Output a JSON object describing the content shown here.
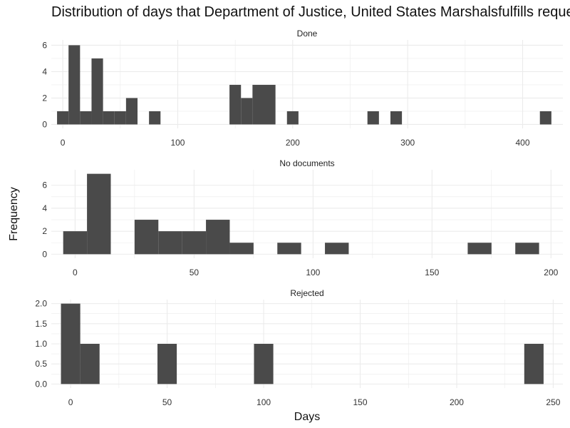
{
  "chart_data": {
    "type": "bar",
    "title": "Distribution of days that Department of Justice, United States Marshalsfulfills reque",
    "xlabel": "Days",
    "ylabel": "Frequency",
    "bar_color": "#4a4a4a",
    "grid_color": "#ebebeb",
    "grid": true,
    "panels": [
      {
        "name": "Done",
        "xlim": [
          -10,
          435
        ],
        "ylim": [
          -0.3,
          6.4
        ],
        "xticks": [
          0,
          100,
          200,
          300,
          400
        ],
        "yticks": [
          0,
          2,
          4,
          6
        ],
        "bin_width": 10,
        "bins": [
          {
            "x": 0,
            "count": 1
          },
          {
            "x": 10,
            "count": 6
          },
          {
            "x": 20,
            "count": 1
          },
          {
            "x": 30,
            "count": 5
          },
          {
            "x": 40,
            "count": 1
          },
          {
            "x": 50,
            "count": 1
          },
          {
            "x": 60,
            "count": 2
          },
          {
            "x": 80,
            "count": 1
          },
          {
            "x": 150,
            "count": 3
          },
          {
            "x": 160,
            "count": 2
          },
          {
            "x": 170,
            "count": 3
          },
          {
            "x": 180,
            "count": 3
          },
          {
            "x": 200,
            "count": 1
          },
          {
            "x": 270,
            "count": 1
          },
          {
            "x": 290,
            "count": 1
          },
          {
            "x": 420,
            "count": 1
          }
        ]
      },
      {
        "name": "No documents",
        "xlim": [
          -10,
          205
        ],
        "ylim": [
          -0.35,
          7.35
        ],
        "xticks": [
          0,
          50,
          100,
          150,
          200
        ],
        "yticks": [
          0,
          2,
          4,
          6
        ],
        "bin_width": 10,
        "bins": [
          {
            "x": 0,
            "count": 2
          },
          {
            "x": 10,
            "count": 7
          },
          {
            "x": 30,
            "count": 3
          },
          {
            "x": 40,
            "count": 2
          },
          {
            "x": 50,
            "count": 2
          },
          {
            "x": 60,
            "count": 3
          },
          {
            "x": 70,
            "count": 1
          },
          {
            "x": 90,
            "count": 1
          },
          {
            "x": 110,
            "count": 1
          },
          {
            "x": 170,
            "count": 1
          },
          {
            "x": 190,
            "count": 1
          }
        ]
      },
      {
        "name": "Rejected",
        "xlim": [
          -10,
          255
        ],
        "ylim": [
          -0.1,
          2.1
        ],
        "xticks": [
          0,
          50,
          100,
          150,
          200,
          250
        ],
        "yticks": [
          0.0,
          0.5,
          1.0,
          1.5,
          2.0
        ],
        "ytick_labels": [
          "0.0",
          "0.5",
          "1.0",
          "1.5",
          "2.0"
        ],
        "bin_width": 10,
        "bins": [
          {
            "x": 0,
            "count": 2
          },
          {
            "x": 10,
            "count": 1
          },
          {
            "x": 50,
            "count": 1
          },
          {
            "x": 100,
            "count": 1
          },
          {
            "x": 240,
            "count": 1
          }
        ]
      }
    ]
  }
}
